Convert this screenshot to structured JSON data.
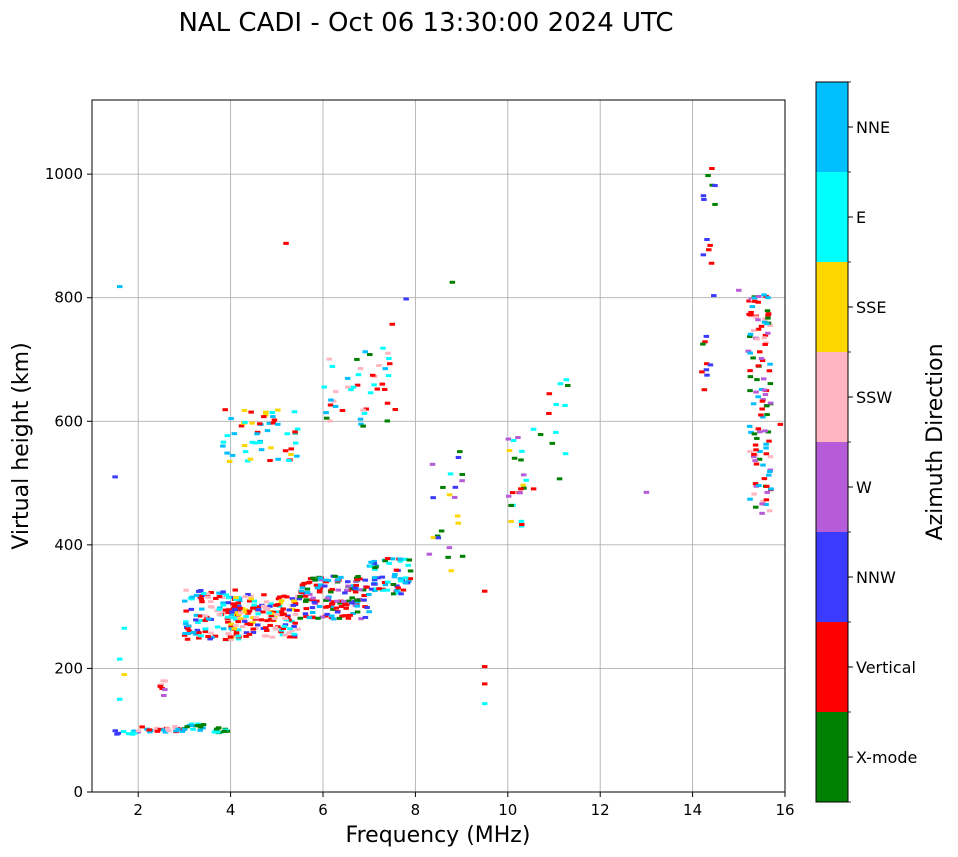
{
  "chart_data": {
    "type": "scatter",
    "title": "NAL CADI - Oct 06 13:30:00 2024 UTC",
    "xlabel": "Frequency (MHz)",
    "ylabel": "Virtual height (km)",
    "xlim": [
      1,
      16
    ],
    "ylim": [
      0,
      1120
    ],
    "xticks": [
      "2",
      "4",
      "6",
      "8",
      "10",
      "12",
      "14",
      "16"
    ],
    "yticks": [
      "0",
      "200",
      "400",
      "600",
      "800",
      "1000"
    ],
    "grid": true,
    "colorbar": {
      "label": "Azimuth Direction",
      "categories": [
        {
          "name": "X-mode",
          "color": "#008000"
        },
        {
          "name": "Vertical",
          "color": "#ff0000"
        },
        {
          "name": "NNW",
          "color": "#3b3bff"
        },
        {
          "name": "W",
          "color": "#b65cd8"
        },
        {
          "name": "SSW",
          "color": "#ffb6c1"
        },
        {
          "name": "SSE",
          "color": "#ffd700"
        },
        {
          "name": "E",
          "color": "#00ffff"
        },
        {
          "name": "NNE",
          "color": "#00bfff"
        }
      ]
    },
    "scatter_clusters": [
      {
        "x": [
          1.4,
          2.0
        ],
        "y": [
          92,
          100
        ],
        "n": 10,
        "colors": [
          "#00bfff",
          "#00ffff",
          "#3b3bff"
        ]
      },
      {
        "x": [
          2.0,
          3.0
        ],
        "y": [
          96,
          106
        ],
        "n": 26,
        "colors": [
          "#ff0000",
          "#ffb6c1",
          "#00bfff",
          "#ff0000"
        ]
      },
      {
        "x": [
          3.0,
          3.5
        ],
        "y": [
          98,
          112
        ],
        "n": 14,
        "colors": [
          "#00ffff",
          "#00bfff",
          "#008000"
        ]
      },
      {
        "x": [
          3.6,
          4.0
        ],
        "y": [
          96,
          104
        ],
        "n": 14,
        "colors": [
          "#008000",
          "#008000",
          "#00ffff"
        ]
      },
      {
        "x": [
          2.4,
          2.6
        ],
        "y": [
          155,
          195
        ],
        "n": 8,
        "colors": [
          "#b65cd8",
          "#ffb6c1",
          "#ff0000"
        ]
      },
      {
        "x": [
          3.0,
          4.2
        ],
        "y": [
          245,
          330
        ],
        "n": 120,
        "colors": [
          "#ff0000",
          "#00bfff",
          "#00ffff",
          "#ffb6c1",
          "#3b3bff",
          "#ff0000"
        ]
      },
      {
        "x": [
          4.0,
          5.5
        ],
        "y": [
          250,
          320
        ],
        "n": 150,
        "colors": [
          "#ff0000",
          "#00ffff",
          "#ffd700",
          "#ffb6c1",
          "#3b3bff",
          "#ff0000"
        ]
      },
      {
        "x": [
          5.5,
          7.0
        ],
        "y": [
          280,
          350
        ],
        "n": 150,
        "colors": [
          "#ff0000",
          "#008000",
          "#3b3bff",
          "#b65cd8",
          "#00bfff",
          "#ff0000"
        ]
      },
      {
        "x": [
          7.0,
          7.9
        ],
        "y": [
          320,
          380
        ],
        "n": 60,
        "colors": [
          "#00ffff",
          "#00bfff",
          "#008000",
          "#ff0000",
          "#3b3bff"
        ]
      },
      {
        "x": [
          3.8,
          5.5
        ],
        "y": [
          535,
          620
        ],
        "n": 55,
        "colors": [
          "#00ffff",
          "#00bfff",
          "#ff0000",
          "#ffd700"
        ]
      },
      {
        "x": [
          6.0,
          7.6
        ],
        "y": [
          590,
          720
        ],
        "n": 45,
        "colors": [
          "#00bfff",
          "#00ffff",
          "#ff0000",
          "#008000",
          "#ffb6c1"
        ]
      },
      {
        "x": [
          8.3,
          9.1
        ],
        "y": [
          355,
          580
        ],
        "n": 22,
        "colors": [
          "#008000",
          "#00ffff",
          "#b65cd8",
          "#ffd700",
          "#3b3bff"
        ]
      },
      {
        "x": [
          10.0,
          10.4
        ],
        "y": [
          425,
          575
        ],
        "n": 22,
        "colors": [
          "#00ffff",
          "#ffd700",
          "#ff0000",
          "#b65cd8",
          "#008000"
        ]
      },
      {
        "x": [
          10.5,
          11.5
        ],
        "y": [
          490,
          670
        ],
        "n": 14,
        "colors": [
          "#ff0000",
          "#008000",
          "#00ffff"
        ]
      },
      {
        "x": [
          14.2,
          14.5
        ],
        "y": [
          650,
          1015
        ],
        "n": 22,
        "colors": [
          "#ff0000",
          "#008000",
          "#3b3bff"
        ]
      },
      {
        "x": [
          15.2,
          15.7
        ],
        "y": [
          450,
          810
        ],
        "n": 120,
        "colors": [
          "#ff0000",
          "#ff0000",
          "#008000",
          "#00bfff",
          "#ffb6c1",
          "#b65cd8"
        ]
      }
    ],
    "isolated_points": [
      {
        "x": 1.6,
        "y": 818,
        "color": "#00bfff"
      },
      {
        "x": 1.5,
        "y": 510,
        "color": "#3b3bff"
      },
      {
        "x": 1.7,
        "y": 265,
        "color": "#00ffff"
      },
      {
        "x": 1.6,
        "y": 215,
        "color": "#00ffff"
      },
      {
        "x": 1.7,
        "y": 190,
        "color": "#ffd700"
      },
      {
        "x": 1.6,
        "y": 150,
        "color": "#00ffff"
      },
      {
        "x": 5.2,
        "y": 888,
        "color": "#ff0000"
      },
      {
        "x": 8.8,
        "y": 825,
        "color": "#008000"
      },
      {
        "x": 7.8,
        "y": 798,
        "color": "#3b3bff"
      },
      {
        "x": 7.5,
        "y": 757,
        "color": "#ff0000"
      },
      {
        "x": 9.5,
        "y": 325,
        "color": "#ff0000"
      },
      {
        "x": 9.5,
        "y": 203,
        "color": "#ff0000"
      },
      {
        "x": 9.5,
        "y": 175,
        "color": "#ff0000"
      },
      {
        "x": 9.5,
        "y": 143,
        "color": "#00ffff"
      },
      {
        "x": 13.0,
        "y": 485,
        "color": "#b65cd8"
      },
      {
        "x": 15.0,
        "y": 812,
        "color": "#b65cd8"
      },
      {
        "x": 15.9,
        "y": 595,
        "color": "#ff0000"
      }
    ]
  }
}
